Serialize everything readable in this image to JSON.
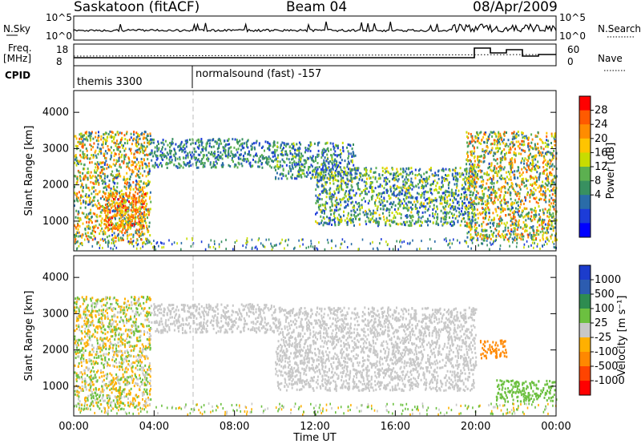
{
  "header": {
    "station": "Saskatoon (fitACF)",
    "beam": "Beam 04",
    "date": "08/Apr/2009"
  },
  "top_strip": {
    "left_label_1": "N.Sky",
    "left_label_2": "Freq.",
    "left_label_3": "[MHz]",
    "left_label_4": "CPID",
    "right_label_1": "N.Search",
    "right_label_2": "Nave",
    "nsky_ticks": [
      "10^5",
      "10^0"
    ],
    "nsearch_ticks": [
      "10^5",
      "10^0"
    ],
    "freq_ticks": [
      "18",
      "8"
    ],
    "nave_ticks": [
      "60",
      "0"
    ],
    "cpid_1": "themis 3300",
    "cpid_2": "normalsound (fast) -157"
  },
  "panels": {
    "power": {
      "ylabel": "Slant Range [km]",
      "yticks": [
        "4000",
        "3000",
        "2000",
        "1000"
      ],
      "cbar_label": "Power [dB]",
      "cbar_ticks": [
        "28",
        "24",
        "20",
        "16",
        "12",
        "8",
        "4"
      ],
      "cbar_colors": [
        "#ff0000",
        "#ff5a00",
        "#ff8c00",
        "#ffc400",
        "#c8dc00",
        "#5cb050",
        "#389060",
        "#2a6ca8",
        "#1c3cd8",
        "#0000ff"
      ]
    },
    "velocity": {
      "ylabel": "Slant Range [km]",
      "yticks": [
        "4000",
        "3000",
        "2000",
        "1000"
      ],
      "cbar_label": "Velocity [m s⁻¹]",
      "cbar_ticks": [
        "1000",
        "500",
        "100",
        "25",
        "-25",
        "-100",
        "-500",
        "-1000"
      ],
      "cbar_colors": [
        "#1c3ccc",
        "#2c5cb0",
        "#2e8c50",
        "#6cc040",
        "#c8c8c8",
        "#ffb000",
        "#ff8800",
        "#ff4400",
        "#ff0000"
      ]
    }
  },
  "x_axis": {
    "ticks": [
      "00:00",
      "04:00",
      "08:00",
      "12:00",
      "16:00",
      "20:00",
      "00:00"
    ],
    "label": "Time UT"
  },
  "chart_data": [
    {
      "type": "heatmap",
      "name": "Power",
      "x_range_hours": [
        0,
        24
      ],
      "y_range_km": [
        180,
        4600
      ],
      "colorbar_range_db": [
        0,
        32
      ],
      "scatter_features": [
        {
          "t": [
            0.0,
            3.8
          ],
          "r": [
            400,
            3500
          ],
          "v": [
            6,
            28
          ]
        },
        {
          "t": [
            1.5,
            3.6
          ],
          "r": [
            800,
            1800
          ],
          "v": [
            18,
            30
          ]
        },
        {
          "t": [
            3.8,
            10.0
          ],
          "r": [
            2500,
            3300
          ],
          "v": [
            4,
            16
          ]
        },
        {
          "t": [
            10.0,
            14.0
          ],
          "r": [
            2200,
            3200
          ],
          "v": [
            4,
            18
          ]
        },
        {
          "t": [
            12.0,
            20.0
          ],
          "r": [
            900,
            2500
          ],
          "v": [
            4,
            20
          ]
        },
        {
          "t": [
            19.5,
            24.0
          ],
          "r": [
            500,
            3500
          ],
          "v": [
            6,
            28
          ]
        }
      ]
    },
    {
      "type": "heatmap",
      "name": "Velocity",
      "x_range_hours": [
        0,
        24
      ],
      "y_range_km": [
        180,
        4600
      ],
      "colorbar_range_ms": [
        -1000,
        1000
      ],
      "scatter_features": [
        {
          "t": [
            0.0,
            3.8
          ],
          "r": [
            400,
            3500
          ],
          "v": [
            -100,
            100
          ]
        },
        {
          "t": [
            3.8,
            10.0
          ],
          "r": [
            2500,
            3300
          ],
          "v": [
            -25,
            25
          ]
        },
        {
          "t": [
            10.0,
            20.0
          ],
          "r": [
            900,
            3200
          ],
          "v": [
            -25,
            25
          ]
        },
        {
          "t": [
            20.2,
            21.5
          ],
          "r": [
            1800,
            2300
          ],
          "v": [
            -500,
            -100
          ]
        },
        {
          "t": [
            21.0,
            24.0
          ],
          "r": [
            600,
            1200
          ],
          "v": [
            25,
            100
          ]
        }
      ]
    }
  ]
}
